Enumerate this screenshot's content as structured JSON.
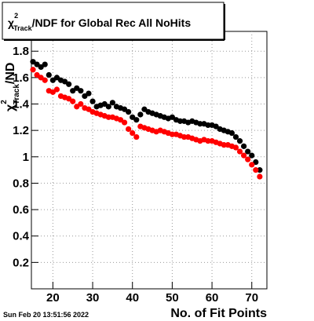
{
  "chart_data": {
    "type": "scatter",
    "title": {
      "symbol": "χ",
      "sup": "2",
      "sub": "Track",
      "text": "/NDF for Global Rec All NoHits"
    },
    "ylabel": {
      "symbol": "χ",
      "sup": "2",
      "sub": "Track",
      "text": "/ND"
    },
    "xlabel": "No. of Fit Points",
    "footer": "Sun Feb 20 13:51:56 2022",
    "xlim": [
      14.6,
      73.8
    ],
    "xticks": [
      20,
      30,
      40,
      50,
      60,
      70
    ],
    "ylim": [
      0,
      1.95
    ],
    "yticks": [
      0.2,
      0.4,
      0.6,
      0.8,
      1,
      1.2,
      1.4,
      1.6,
      1.8
    ],
    "grid": true,
    "x": [
      15,
      16,
      17,
      18,
      19,
      20,
      21,
      22,
      23,
      24,
      25,
      26,
      27,
      28,
      29,
      30,
      31,
      32,
      33,
      34,
      35,
      36,
      37,
      38,
      39,
      40,
      41,
      42,
      43,
      44,
      45,
      46,
      47,
      48,
      49,
      50,
      51,
      52,
      53,
      54,
      55,
      56,
      57,
      58,
      59,
      60,
      61,
      62,
      63,
      64,
      65,
      66,
      67,
      68,
      69,
      70,
      71,
      72
    ],
    "series": [
      {
        "color": "#000000",
        "values": [
          1.72,
          1.7,
          1.68,
          1.7,
          1.62,
          1.58,
          1.6,
          1.58,
          1.57,
          1.55,
          1.5,
          1.52,
          1.5,
          1.46,
          1.48,
          1.42,
          1.38,
          1.39,
          1.4,
          1.38,
          1.41,
          1.38,
          1.37,
          1.36,
          1.34,
          1.3,
          1.28,
          1.32,
          1.36,
          1.34,
          1.33,
          1.32,
          1.31,
          1.3,
          1.29,
          1.3,
          1.28,
          1.27,
          1.27,
          1.26,
          1.27,
          1.26,
          1.25,
          1.25,
          1.24,
          1.24,
          1.23,
          1.21,
          1.2,
          1.19,
          1.18,
          1.15,
          1.12,
          1.08,
          1.04,
          1.01,
          0.96,
          0.9
        ]
      },
      {
        "color": "#ff0000",
        "values": [
          1.66,
          1.62,
          1.6,
          1.58,
          1.5,
          1.49,
          1.51,
          1.46,
          1.45,
          1.44,
          1.42,
          1.38,
          1.4,
          1.37,
          1.36,
          1.34,
          1.33,
          1.32,
          1.31,
          1.3,
          1.3,
          1.29,
          1.28,
          1.26,
          1.21,
          1.18,
          1.15,
          1.23,
          1.22,
          1.21,
          1.2,
          1.19,
          1.2,
          1.19,
          1.18,
          1.17,
          1.17,
          1.16,
          1.15,
          1.15,
          1.14,
          1.13,
          1.12,
          1.13,
          1.12,
          1.12,
          1.11,
          1.1,
          1.09,
          1.09,
          1.08,
          1.07,
          1.04,
          1.01,
          0.98,
          0.94,
          0.9,
          0.85
        ]
      }
    ]
  }
}
